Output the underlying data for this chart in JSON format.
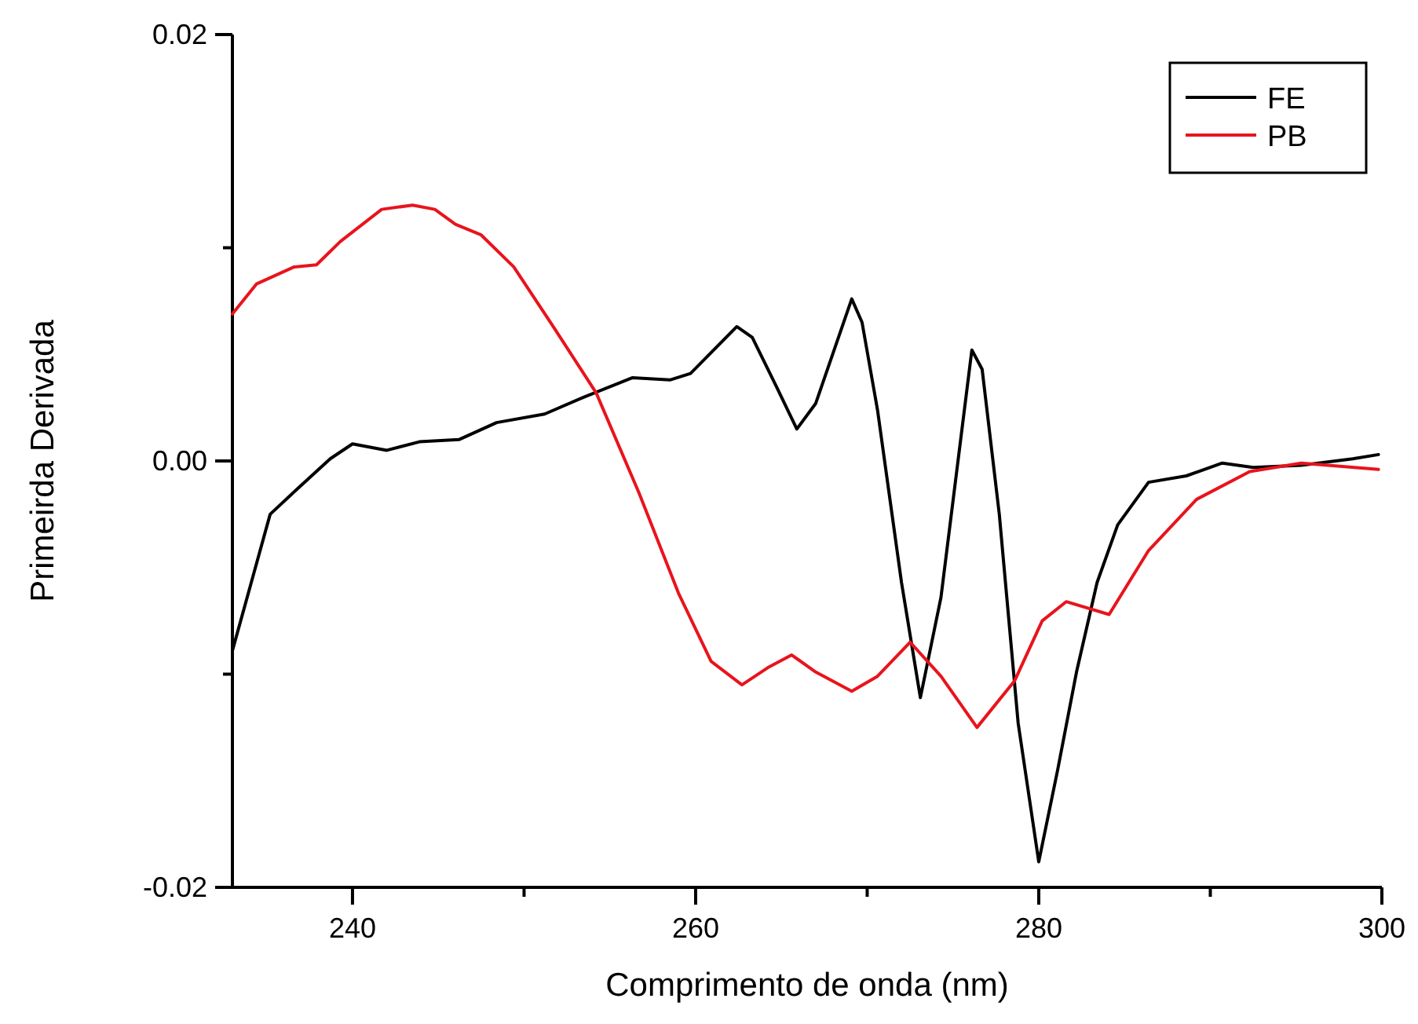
{
  "chart_data": {
    "type": "line",
    "xlabel": "Comprimento de onda (nm)",
    "ylabel": "Primeirda Derivada",
    "xlim": [
      233,
      300
    ],
    "ylim": [
      -0.02,
      0.02
    ],
    "xticks": [
      240,
      {
        "value": 250,
        "label": null
      },
      260,
      {
        "value": 270,
        "label": null
      },
      280,
      {
        "value": 290,
        "label": null
      },
      300
    ],
    "yticks": [
      {
        "value": -0.02,
        "label": "-0.02"
      },
      {
        "value": -0.01,
        "label": null
      },
      {
        "value": 0,
        "label": "0.00"
      },
      {
        "value": 0.01,
        "label": null
      },
      {
        "value": 0.02,
        "label": "0.02"
      }
    ],
    "grid": false,
    "legend": "top right",
    "marker": "none",
    "line_style": "solid",
    "series": [
      {
        "name": "FE",
        "color": "#000000",
        "x": [
          233,
          234.1,
          235.2,
          236.8,
          238.7,
          240.0,
          242.0,
          243.9,
          246.2,
          248.4,
          251.2,
          253.5,
          256.3,
          258.5,
          259.7,
          262.4,
          263.3,
          264.7,
          265.9,
          267.0,
          269.1,
          269.7,
          270.6,
          272.0,
          273.1,
          274.3,
          276.1,
          276.7,
          277.7,
          278.8,
          280.0,
          281.1,
          282.2,
          283.4,
          284.6,
          286.4,
          288.6,
          290.7,
          292.5,
          295.3,
          298.3,
          299.8
        ],
        "values": [
          -0.0089,
          -0.0057,
          -0.0025,
          -0.0013,
          0.0001,
          0.0008,
          0.0005,
          0.0009,
          0.001,
          0.0018,
          0.0022,
          0.003,
          0.0039,
          0.0038,
          0.0041,
          0.0063,
          0.0058,
          0.0035,
          0.0015,
          0.0027,
          0.0076,
          0.0065,
          0.0024,
          -0.0057,
          -0.0111,
          -0.0064,
          0.0052,
          0.0043,
          -0.0025,
          -0.0123,
          -0.0188,
          -0.0145,
          -0.0099,
          -0.0057,
          -0.003,
          -0.001,
          -0.0007,
          -0.0001,
          -0.0003,
          -0.0002,
          0.0001,
          0.0003
        ]
      },
      {
        "name": "PB",
        "color": "#e8141c",
        "x": [
          233,
          234.4,
          236.6,
          237.9,
          239.3,
          241.7,
          243.5,
          244.8,
          246.0,
          247.5,
          249.4,
          251.7,
          254.2,
          256.7,
          259.0,
          260.9,
          262.7,
          264.2,
          265.6,
          267.0,
          269.1,
          270.6,
          272.5,
          274.3,
          276.4,
          278.6,
          280.2,
          281.6,
          284.1,
          286.4,
          289.2,
          292.3,
          295.3,
          299.8
        ],
        "values": [
          0.0069,
          0.0083,
          0.0091,
          0.0092,
          0.0103,
          0.0118,
          0.012,
          0.0118,
          0.0111,
          0.0106,
          0.0091,
          0.0063,
          0.0032,
          -0.0015,
          -0.0062,
          -0.0094,
          -0.0105,
          -0.0097,
          -0.0091,
          -0.0099,
          -0.0108,
          -0.0101,
          -0.0085,
          -0.0101,
          -0.0125,
          -0.0103,
          -0.0075,
          -0.0066,
          -0.0072,
          -0.0042,
          -0.0018,
          -0.0005,
          -0.0001,
          -0.0004
        ]
      }
    ]
  }
}
